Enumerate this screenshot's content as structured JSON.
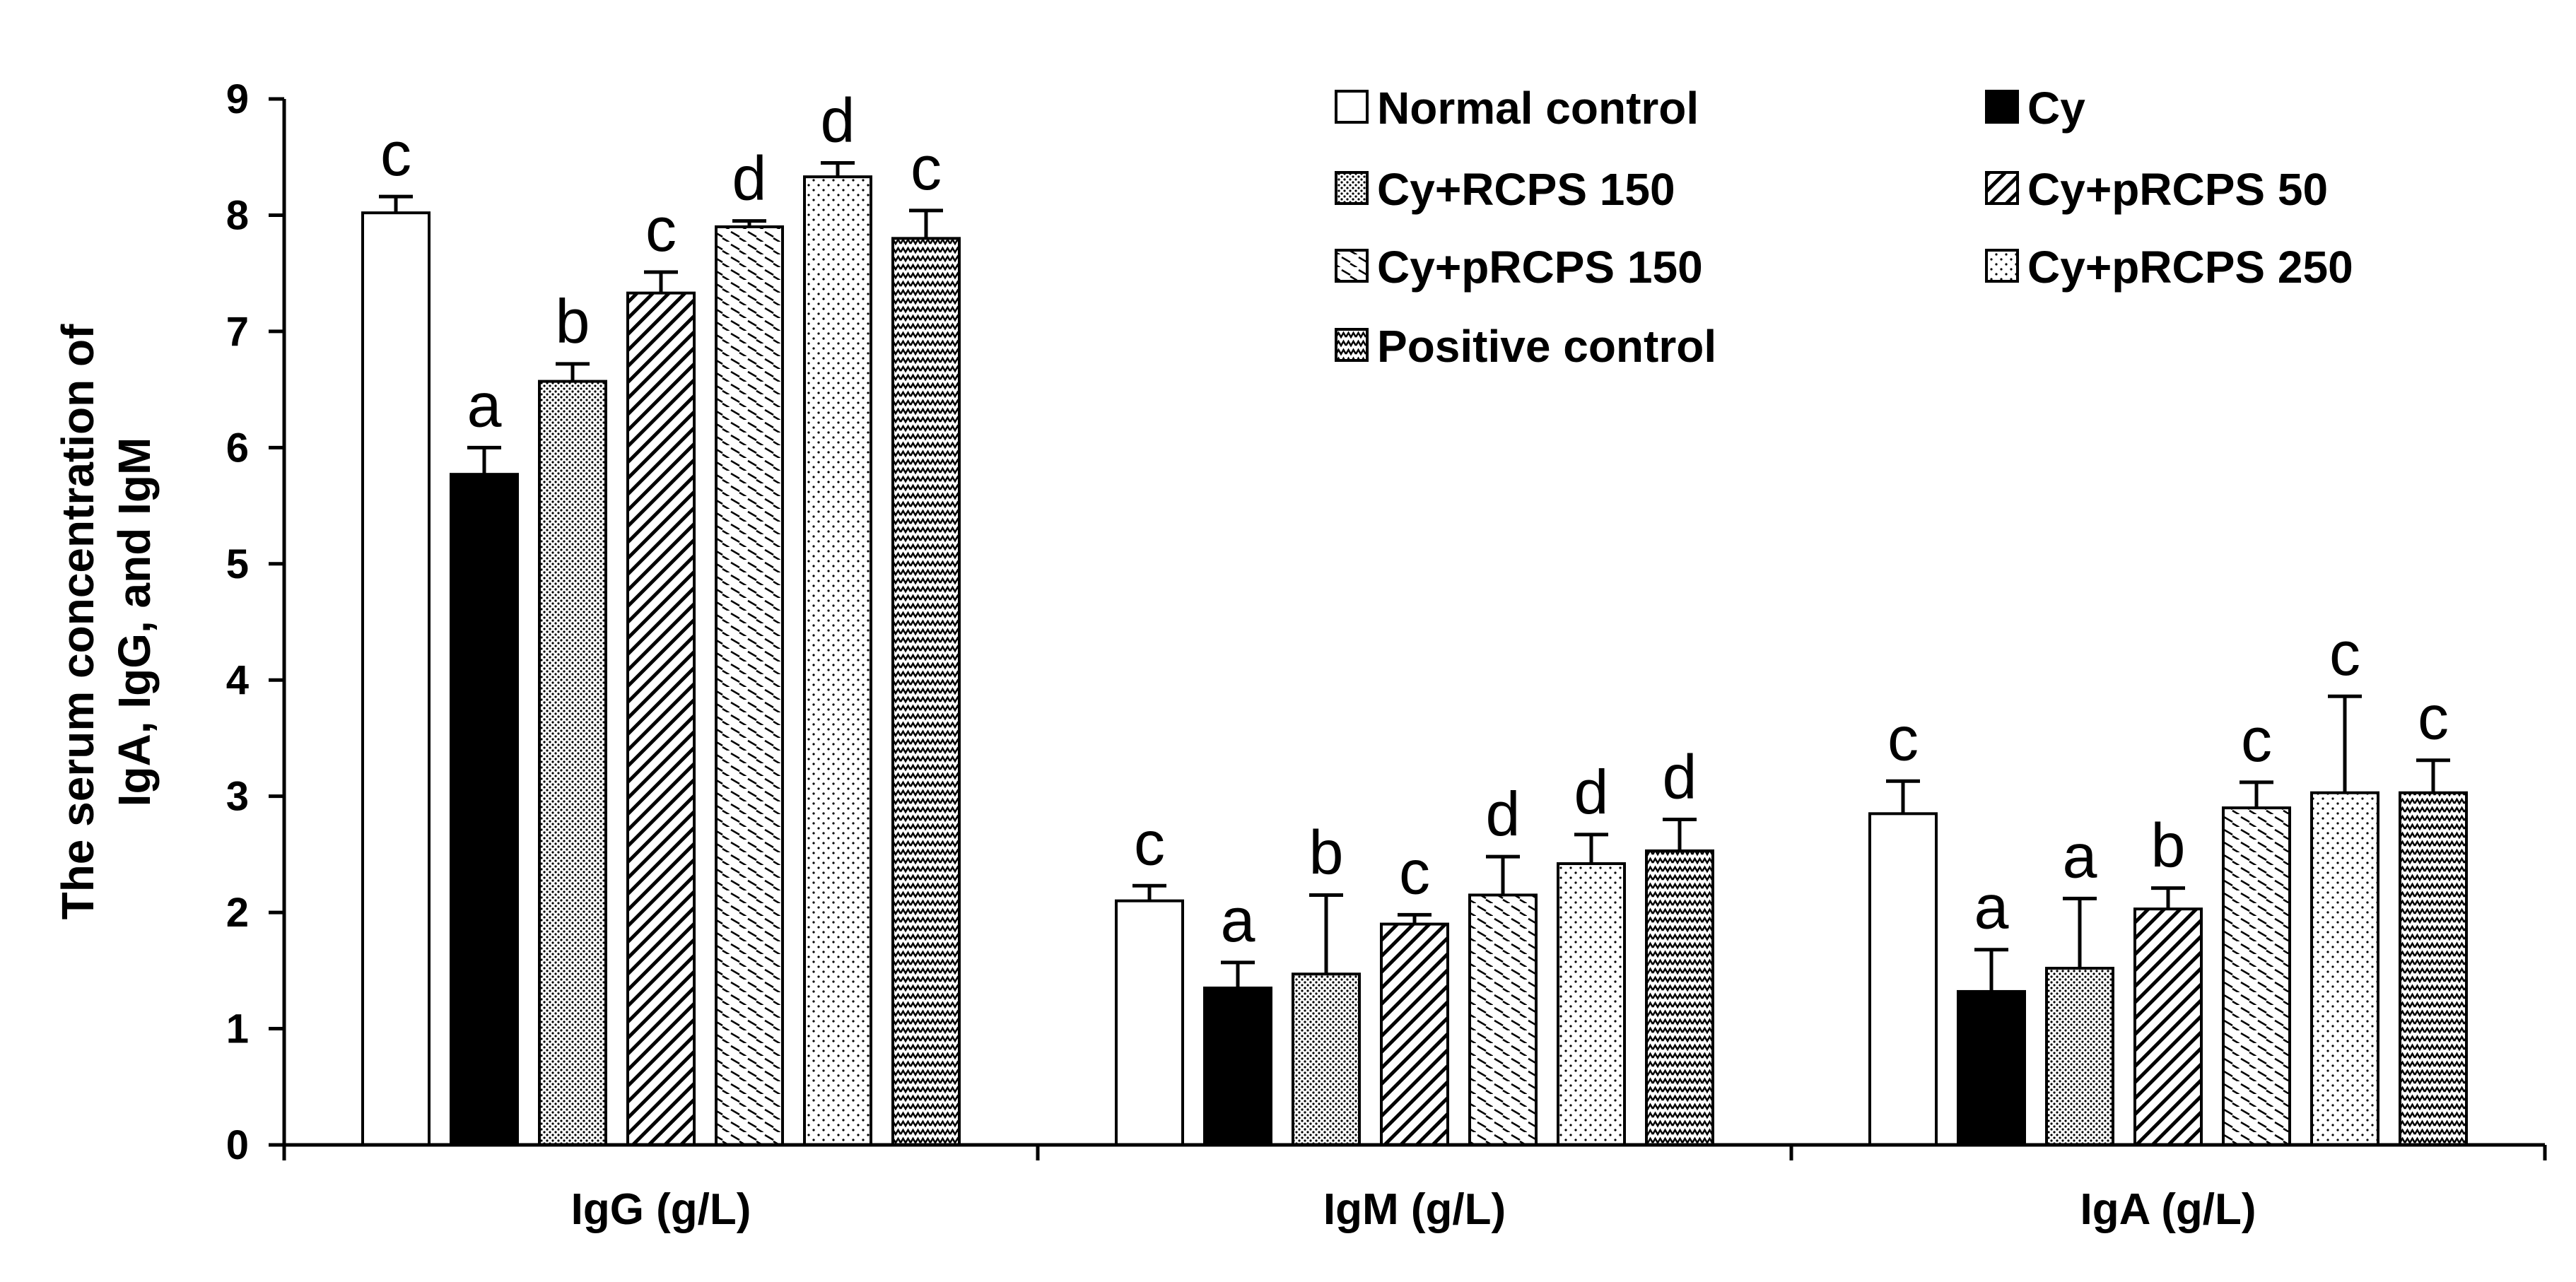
{
  "chart_data": {
    "type": "bar",
    "title": "",
    "xlabel": "",
    "ylabel_lines": [
      "The serum concentration of",
      "IgA, IgG, and IgM"
    ],
    "ylim": [
      0,
      9
    ],
    "yticks": [
      0,
      1,
      2,
      3,
      4,
      5,
      6,
      7,
      8,
      9
    ],
    "categories": [
      "IgG (g/L)",
      "IgM (g/L)",
      "IgA (g/L)"
    ],
    "legend_position": "top-right",
    "series": [
      {
        "name": "Normal control",
        "pattern": "white",
        "values": [
          8.02,
          2.1,
          2.85
        ],
        "errors": [
          0.14,
          0.13,
          0.28
        ],
        "labels": [
          "c",
          "c",
          "c"
        ]
      },
      {
        "name": "Cy",
        "pattern": "black",
        "values": [
          5.77,
          1.35,
          1.32
        ],
        "errors": [
          0.23,
          0.22,
          0.36
        ],
        "labels": [
          "a",
          "a",
          "a"
        ]
      },
      {
        "name": "Cy+RCPS 150",
        "pattern": "dense-dots",
        "values": [
          6.57,
          1.47,
          1.52
        ],
        "errors": [
          0.15,
          0.68,
          0.6
        ],
        "labels": [
          "b",
          "b",
          "a"
        ]
      },
      {
        "name": "Cy+pRCPS 50",
        "pattern": "diagonal",
        "values": [
          7.33,
          1.9,
          2.03
        ],
        "errors": [
          0.18,
          0.08,
          0.18
        ],
        "labels": [
          "c",
          "c",
          "b"
        ]
      },
      {
        "name": "Cy+pRCPS 150",
        "pattern": "horizontal-dashes",
        "values": [
          7.9,
          2.15,
          2.9
        ],
        "errors": [
          0.05,
          0.33,
          0.22
        ],
        "labels": [
          "d",
          "d",
          "c"
        ]
      },
      {
        "name": "Cy+pRCPS 250",
        "pattern": "sparse-dots",
        "values": [
          8.33,
          2.42,
          3.03
        ],
        "errors": [
          0.12,
          0.25,
          0.83
        ],
        "labels": [
          "d",
          "d",
          "c"
        ]
      },
      {
        "name": "Positive control",
        "pattern": "zigzag",
        "values": [
          7.8,
          2.53,
          3.03
        ],
        "errors": [
          0.24,
          0.27,
          0.28
        ],
        "labels": [
          "c",
          "d",
          "c"
        ]
      }
    ]
  }
}
